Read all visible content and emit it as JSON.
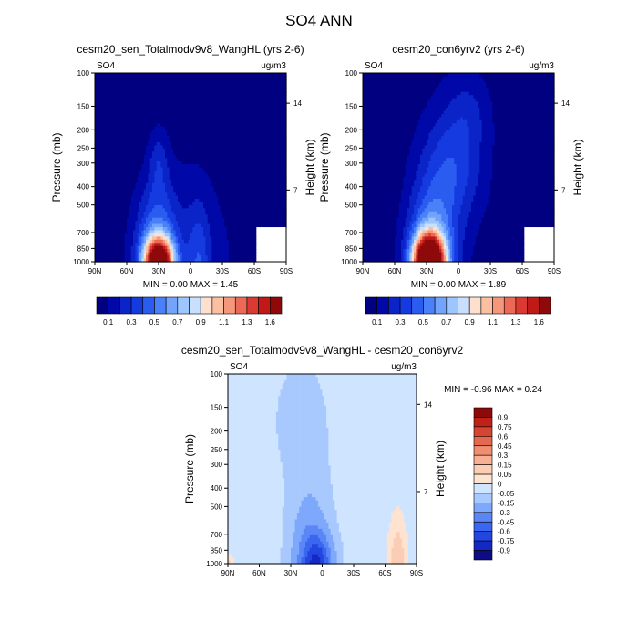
{
  "page_title": "SO4 ANN",
  "colors": {
    "cmap_abs": [
      "#000080",
      "#0008a8",
      "#0a24c8",
      "#143ae0",
      "#2b5cf0",
      "#4a80f8",
      "#72a4fb",
      "#9cc6fd",
      "#c8e0fe",
      "#ffe0cc",
      "#fbbfa2",
      "#f5977a",
      "#ec6a55",
      "#db3a33",
      "#c01a18",
      "#8e0a0a"
    ],
    "cmap_diff": [
      "#0d0b85",
      "#1428c4",
      "#2446e0",
      "#3b66f0",
      "#5a86f6",
      "#7ea8fb",
      "#a8c9fd",
      "#cfe4fe",
      "#fde3d0",
      "#fbcdb4",
      "#f7b094",
      "#f08e70",
      "#e5684f",
      "#d64530",
      "#bf2218",
      "#8e0a0a"
    ]
  },
  "chart_data": [
    {
      "type": "contour",
      "title": "cesm20_sen_Totalmodv9v8_WangHL (yrs 2-6)",
      "variable_label": "SO4",
      "units_label": "ug/m3",
      "ylabel": "Pressure (mb)",
      "ylabel_right": "Height (km)",
      "x_ticks": [
        "90N",
        "60N",
        "30N",
        "0",
        "30S",
        "60S",
        "90S"
      ],
      "y_ticks": [
        "100",
        "150",
        "200",
        "250",
        "300",
        "400",
        "500",
        "700",
        "850",
        "1000"
      ],
      "height_ticks": [
        "14",
        "7"
      ],
      "min_max_label": "MIN =   0.00   MAX =   1.45",
      "min": 0.0,
      "max": 1.45,
      "colorbar_labels": [
        "0.1",
        "0.3",
        "0.5",
        "0.7",
        "0.9",
        "1.1",
        "1.3",
        "1.6"
      ],
      "colorbar_levels": [
        0.1,
        0.2,
        0.3,
        0.4,
        0.5,
        0.6,
        0.7,
        0.8,
        0.9,
        1.0,
        1.1,
        1.2,
        1.3,
        1.4,
        1.5,
        1.6
      ]
    },
    {
      "type": "contour",
      "title": "cesm20_con6yrv2 (yrs 2-6)",
      "variable_label": "SO4",
      "units_label": "ug/m3",
      "ylabel": "Pressure (mb)",
      "ylabel_right": "Height (km)",
      "x_ticks": [
        "90N",
        "60N",
        "30N",
        "0",
        "30S",
        "60S",
        "90S"
      ],
      "y_ticks": [
        "100",
        "150",
        "200",
        "250",
        "300",
        "400",
        "500",
        "700",
        "850",
        "1000"
      ],
      "height_ticks": [
        "14",
        "7"
      ],
      "min_max_label": "MIN =   0.00   MAX =   1.89",
      "min": 0.0,
      "max": 1.89,
      "colorbar_labels": [
        "0.1",
        "0.3",
        "0.5",
        "0.7",
        "0.9",
        "1.1",
        "1.3",
        "1.6"
      ],
      "colorbar_levels": [
        0.1,
        0.2,
        0.3,
        0.4,
        0.5,
        0.6,
        0.7,
        0.8,
        0.9,
        1.0,
        1.1,
        1.2,
        1.3,
        1.4,
        1.5,
        1.6
      ]
    },
    {
      "type": "contour",
      "title": "cesm20_sen_Totalmodv9v8_WangHL - cesm20_con6yrv2",
      "variable_label": "SO4",
      "units_label": "ug/m3",
      "ylabel": "Pressure (mb)",
      "ylabel_right": "Height (km)",
      "x_ticks": [
        "90N",
        "60N",
        "30N",
        "0",
        "30S",
        "60S",
        "90S"
      ],
      "y_ticks": [
        "100",
        "150",
        "200",
        "250",
        "300",
        "400",
        "500",
        "700",
        "850",
        "1000"
      ],
      "height_ticks": [
        "14",
        "7"
      ],
      "min_max_label": "MIN =  -0.96   MAX =   0.24",
      "min": -0.96,
      "max": 0.24,
      "colorbar_labels": [
        "0.9",
        "0.75",
        "0.6",
        "0.45",
        "0.3",
        "0.15",
        "0.05",
        "0",
        "-0.05",
        "-0.15",
        "-0.3",
        "-0.45",
        "-0.6",
        "-0.75",
        "-0.9"
      ]
    }
  ]
}
